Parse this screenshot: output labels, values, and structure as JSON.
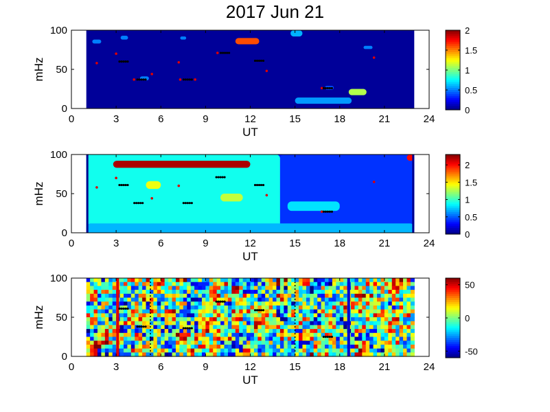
{
  "figure": {
    "title": "2017 Jun 21"
  },
  "chart_data": [
    {
      "type": "heatmap",
      "title": "",
      "xlabel": "UT",
      "ylabel": "mHz",
      "xlim": [
        0,
        24
      ],
      "ylim": [
        0,
        100
      ],
      "xticks": [
        0,
        3,
        6,
        9,
        12,
        15,
        18,
        21,
        24
      ],
      "yticks": [
        0,
        50,
        100
      ],
      "data_range_ut": [
        1.0,
        23.0
      ],
      "colormap": "jet",
      "background_level": 0.05,
      "colorbar": {
        "min": 0,
        "max": 2,
        "ticks": [
          "0",
          "0.5",
          "1",
          "1.5",
          "2"
        ]
      },
      "features": [
        {
          "t0": 11.0,
          "t1": 12.6,
          "f0": 82,
          "f1": 90,
          "value": 1.6
        },
        {
          "t0": 15.0,
          "t1": 18.8,
          "f0": 6,
          "f1": 14,
          "value": 0.55
        },
        {
          "t0": 18.6,
          "t1": 19.8,
          "f0": 17,
          "f1": 25,
          "value": 1.1
        },
        {
          "t0": 1.4,
          "t1": 2.0,
          "f0": 83,
          "f1": 88,
          "value": 0.5
        },
        {
          "t0": 3.3,
          "t1": 3.8,
          "f0": 88,
          "f1": 93,
          "value": 0.5
        },
        {
          "t0": 7.3,
          "t1": 7.7,
          "f0": 88,
          "f1": 92,
          "value": 0.5
        },
        {
          "t0": 14.7,
          "t1": 15.5,
          "f0": 92,
          "f1": 100,
          "value": 0.6
        },
        {
          "t0": 19.6,
          "t1": 20.2,
          "f0": 76,
          "f1": 80,
          "value": 0.5
        },
        {
          "t0": 4.6,
          "t1": 5.2,
          "f0": 36,
          "f1": 41,
          "value": 0.5
        },
        {
          "t0": 17.0,
          "t1": 17.6,
          "f0": 24,
          "f1": 29,
          "value": 0.4
        }
      ],
      "markers": [
        {
          "ut": 1.7,
          "f": 58,
          "color": "red"
        },
        {
          "ut": 3.0,
          "f": 70,
          "color": "red"
        },
        {
          "ut": 3.5,
          "f": 60,
          "color": "black"
        },
        {
          "ut": 4.2,
          "f": 37,
          "color": "red"
        },
        {
          "ut": 4.7,
          "f": 37,
          "color": "black"
        },
        {
          "ut": 5.4,
          "f": 44,
          "color": "red"
        },
        {
          "ut": 7.2,
          "f": 59,
          "color": "red"
        },
        {
          "ut": 7.3,
          "f": 37,
          "color": "red"
        },
        {
          "ut": 7.8,
          "f": 37,
          "color": "black"
        },
        {
          "ut": 8.3,
          "f": 37,
          "color": "red"
        },
        {
          "ut": 9.8,
          "f": 71,
          "color": "red"
        },
        {
          "ut": 10.3,
          "f": 71,
          "color": "black"
        },
        {
          "ut": 12.6,
          "f": 61,
          "color": "black"
        },
        {
          "ut": 13.1,
          "f": 48,
          "color": "red"
        },
        {
          "ut": 16.8,
          "f": 26,
          "color": "red"
        },
        {
          "ut": 17.2,
          "f": 26,
          "color": "black"
        },
        {
          "ut": 20.3,
          "f": 65,
          "color": "red"
        }
      ]
    },
    {
      "type": "heatmap",
      "title": "",
      "xlabel": "UT",
      "ylabel": "mHz",
      "xlim": [
        0,
        24
      ],
      "ylim": [
        0,
        100
      ],
      "xticks": [
        0,
        3,
        6,
        9,
        12,
        15,
        18,
        21,
        24
      ],
      "yticks": [
        0,
        50,
        100
      ],
      "data_range_ut": [
        1.0,
        23.0
      ],
      "colormap": "jet",
      "background_level": 0.35,
      "colorbar": {
        "min": 0,
        "max": 2.3,
        "ticks": [
          "0",
          "0.5",
          "1",
          "1.5",
          "2"
        ]
      },
      "features": [
        {
          "t0": 1.0,
          "t1": 14.0,
          "f0": 0,
          "f1": 100,
          "value": 0.9
        },
        {
          "t0": 14.0,
          "t1": 23.0,
          "f0": 0,
          "f1": 100,
          "value": 0.4
        },
        {
          "t0": 1.0,
          "t1": 23.0,
          "f0": 0,
          "f1": 12,
          "value": 0.7
        },
        {
          "t0": 2.8,
          "t1": 12.0,
          "f0": 83,
          "f1": 92,
          "value": 2.2
        },
        {
          "t0": 5.0,
          "t1": 6.0,
          "f0": 56,
          "f1": 66,
          "value": 1.4
        },
        {
          "t0": 10.0,
          "t1": 11.5,
          "f0": 40,
          "f1": 50,
          "value": 1.3
        },
        {
          "t0": 14.5,
          "t1": 18.0,
          "f0": 28,
          "f1": 40,
          "value": 0.8
        },
        {
          "t0": 22.5,
          "t1": 23.0,
          "f0": 92,
          "f1": 100,
          "value": 2.0
        }
      ],
      "markers": [
        {
          "ut": 1.7,
          "f": 58,
          "color": "red"
        },
        {
          "ut": 3.0,
          "f": 70,
          "color": "red"
        },
        {
          "ut": 3.5,
          "f": 61,
          "color": "black"
        },
        {
          "ut": 4.5,
          "f": 38,
          "color": "black"
        },
        {
          "ut": 5.4,
          "f": 44,
          "color": "red"
        },
        {
          "ut": 7.2,
          "f": 60,
          "color": "red"
        },
        {
          "ut": 7.8,
          "f": 38,
          "color": "black"
        },
        {
          "ut": 10.0,
          "f": 71,
          "color": "black"
        },
        {
          "ut": 12.6,
          "f": 61,
          "color": "black"
        },
        {
          "ut": 13.1,
          "f": 48,
          "color": "red"
        },
        {
          "ut": 16.8,
          "f": 27,
          "color": "red"
        },
        {
          "ut": 17.2,
          "f": 27,
          "color": "black"
        },
        {
          "ut": 20.3,
          "f": 65,
          "color": "red"
        }
      ]
    },
    {
      "type": "heatmap",
      "title": "",
      "xlabel": "UT",
      "ylabel": "mHz",
      "xlim": [
        0,
        24
      ],
      "ylim": [
        0,
        100
      ],
      "xticks": [
        0,
        3,
        6,
        9,
        12,
        15,
        18,
        21,
        24
      ],
      "yticks": [
        0,
        50,
        100
      ],
      "data_range_ut": [
        1.0,
        23.0
      ],
      "colormap": "jet",
      "background_level": 0,
      "colorbar": {
        "min": -60,
        "max": 60,
        "ticks": [
          "50",
          "0",
          "-50"
        ]
      },
      "vertical_lines": [
        {
          "ut": 3.1,
          "color": "#e00000",
          "style": "solid"
        },
        {
          "ut": 5.3,
          "color": "#000000",
          "style": "dotted"
        },
        {
          "ut": 15.0,
          "color": "#000000",
          "style": "dotted"
        },
        {
          "ut": 18.6,
          "color": "#0000d0",
          "style": "solid"
        }
      ],
      "markers": [
        {
          "ut": 3.5,
          "f": 61,
          "color": "black"
        },
        {
          "ut": 4.7,
          "f": 38,
          "color": "black"
        },
        {
          "ut": 7.8,
          "f": 36,
          "color": "black"
        },
        {
          "ut": 10.0,
          "f": 70,
          "color": "black"
        },
        {
          "ut": 12.6,
          "f": 59,
          "color": "black"
        },
        {
          "ut": 17.2,
          "f": 25,
          "color": "black"
        }
      ]
    }
  ]
}
